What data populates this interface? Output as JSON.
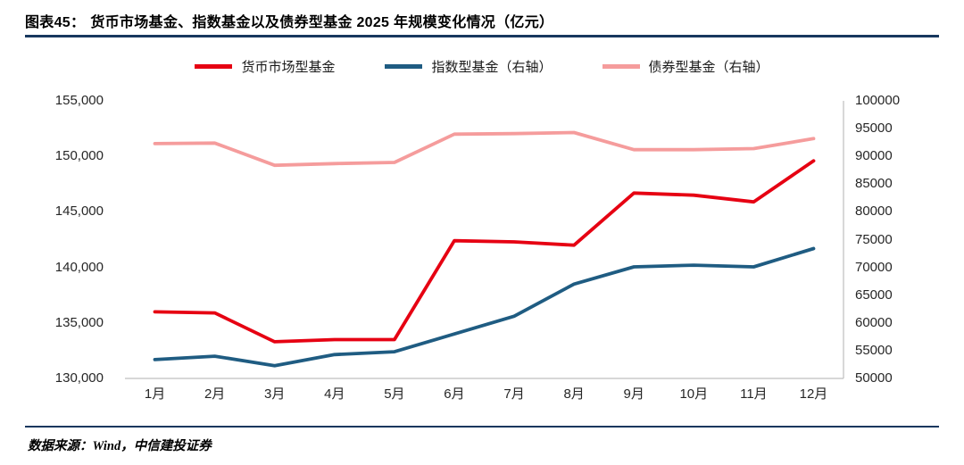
{
  "accent_color": "#17375e",
  "header": {
    "label": "图表45：",
    "title": "货币市场基金、指数基金以及债券型基金 2025 年规模变化情况（亿元）"
  },
  "footer": {
    "source": "数据来源：Wind，中信建投证券"
  },
  "chart_data": {
    "type": "line",
    "title": "货币市场基金、指数基金以及债券型基金 2025 年规模变化情况（亿元）",
    "xlabel": "",
    "ylabel": "",
    "grid": false,
    "legend_position": "top",
    "categories": [
      "1月",
      "2月",
      "3月",
      "4月",
      "5月",
      "6月",
      "7月",
      "8月",
      "9月",
      "10月",
      "11月",
      "12月"
    ],
    "series": [
      {
        "name": "货币市场型基金",
        "axis": "left",
        "color": "#e60012",
        "values": [
          136000,
          135900,
          133300,
          133500,
          133500,
          142400,
          142300,
          142000,
          146700,
          146500,
          145900,
          149600
        ]
      },
      {
        "name": "指数型基金（右轴）",
        "axis": "right",
        "color": "#1f5c82",
        "values": [
          53400,
          54000,
          52300,
          54300,
          54800,
          58000,
          61200,
          67000,
          70100,
          70400,
          70100,
          73400
        ]
      },
      {
        "name": "债券型基金（右轴）",
        "axis": "right",
        "color": "#f59c9c",
        "values": [
          92300,
          92400,
          88400,
          88700,
          88900,
          94000,
          94100,
          94300,
          91200,
          91200,
          91400,
          93200
        ]
      }
    ],
    "left_axis": {
      "min": 130000,
      "max": 155000,
      "step": 5000,
      "format": "comma"
    },
    "right_axis": {
      "min": 50000,
      "max": 100000,
      "step": 5000,
      "format": "plain"
    },
    "axis_line_color": "#bfbfbf"
  }
}
